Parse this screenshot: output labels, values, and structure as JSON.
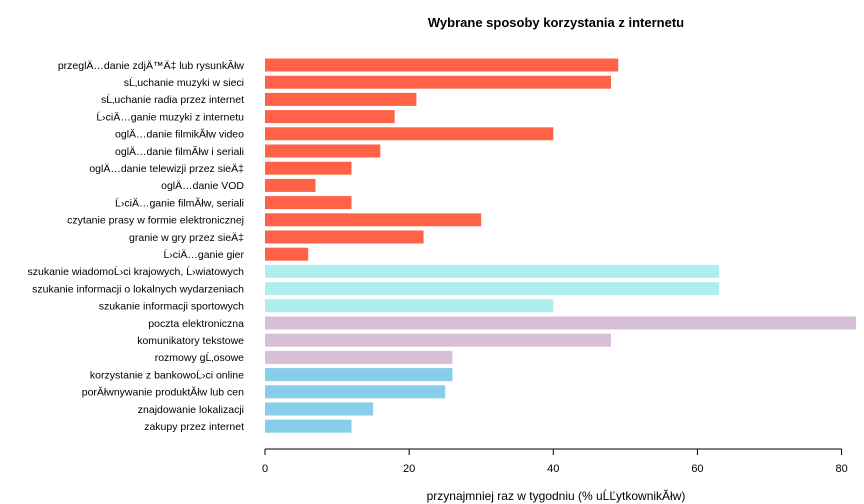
{
  "chart_data": {
    "type": "bar",
    "orientation": "horizontal",
    "title": "Wybrane sposoby korzystania z internetu",
    "xlabel": "przynajmniej raz w tygodniu (% uĹĽytkownikĂłw)",
    "ylabel": "",
    "xlim": [
      0,
      82
    ],
    "xticks": [
      "0",
      "20",
      "40",
      "60",
      "80"
    ],
    "grid": false,
    "legend": "none",
    "bars": [
      {
        "label": "przeglÄ…danie zdjÄ™Ä‡ lub rysunkĂłw",
        "value": 49,
        "color": "#FF6347"
      },
      {
        "label": "sĹ‚uchanie muzyki w sieci",
        "value": 48,
        "color": "#FF6347"
      },
      {
        "label": "sĹ‚uchanie radia przez internet",
        "value": 21,
        "color": "#FF6347"
      },
      {
        "label": "Ĺ›ciÄ…ganie muzyki z internetu",
        "value": 18,
        "color": "#FF6347"
      },
      {
        "label": "oglÄ…danie filmikĂłw video",
        "value": 40,
        "color": "#FF6347"
      },
      {
        "label": "oglÄ…danie filmĂłw i seriali",
        "value": 16,
        "color": "#FF6347"
      },
      {
        "label": "oglÄ…danie telewizji przez sieÄ‡",
        "value": 12,
        "color": "#FF6347"
      },
      {
        "label": "oglÄ…danie VOD",
        "value": 7,
        "color": "#FF6347"
      },
      {
        "label": "Ĺ›ciÄ…ganie filmĂłw, seriali",
        "value": 12,
        "color": "#FF6347"
      },
      {
        "label": "czytanie prasy w formie elektronicznej",
        "value": 30,
        "color": "#FF6347"
      },
      {
        "label": "granie w gry przez sieÄ‡",
        "value": 22,
        "color": "#FF6347"
      },
      {
        "label": "Ĺ›ciÄ…ganie gier",
        "value": 6,
        "color": "#FF6347"
      },
      {
        "label": "szukanie wiadomoĹ›ci krajowych, Ĺ›wiatowych",
        "value": 63,
        "color": "#AFEEEE"
      },
      {
        "label": "szukanie informacji o lokalnych wydarzeniach",
        "value": 63,
        "color": "#AFEEEE"
      },
      {
        "label": "szukanie informacji sportowych",
        "value": 40,
        "color": "#AFEEEE"
      },
      {
        "label": "poczta elektroniczna",
        "value": 82,
        "color": "#D8BFD8"
      },
      {
        "label": "komunikatory tekstowe",
        "value": 48,
        "color": "#D8BFD8"
      },
      {
        "label": "rozmowy gĹ‚osowe",
        "value": 26,
        "color": "#D8BFD8"
      },
      {
        "label": "korzystanie z bankowoĹ›ci online",
        "value": 26,
        "color": "#87CEEB"
      },
      {
        "label": "porĂłwnywanie produktĂłw lub cen",
        "value": 25,
        "color": "#87CEEB"
      },
      {
        "label": "znajdowanie lokalizacji",
        "value": 15,
        "color": "#87CEEB"
      },
      {
        "label": "zakupy przez internet",
        "value": 12,
        "color": "#87CEEB"
      }
    ]
  }
}
